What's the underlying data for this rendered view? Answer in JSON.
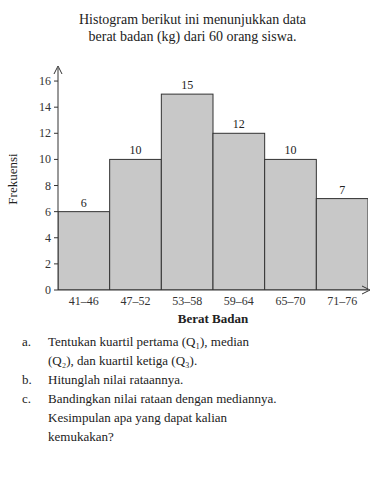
{
  "chart_data": {
    "type": "bar",
    "title": [
      "Histogram berikut ini menunjukkan data",
      "berat badan (kg) dari 60 orang siswa."
    ],
    "categories": [
      "41–46",
      "47–52",
      "53–58",
      "59–64",
      "65–70",
      "71–76"
    ],
    "values": [
      6,
      10,
      15,
      12,
      10,
      7
    ],
    "color": "#c8c8c8",
    "xlabel": "Berat Badan",
    "ylabel": "Frekuensi",
    "ylim": [
      0,
      17
    ],
    "yticks": [
      0,
      2,
      4,
      6,
      8,
      10,
      12,
      14,
      16
    ],
    "grid": false,
    "data_labels": true,
    "annotations": [
      {
        "label": "a.",
        "lines": [
          "Tentukan kuartil pertama (Q₁), median",
          "(Q₂), dan kuartil ketiga (Q₃)."
        ]
      },
      {
        "label": "b.",
        "lines": [
          "Hitunglah nilai rataannya."
        ]
      },
      {
        "label": "c.",
        "lines": [
          "Bandingkan nilai rataan dengan mediannya.",
          "Kesimpulan apa yang dapat kalian",
          "kemukakan?"
        ]
      }
    ]
  }
}
